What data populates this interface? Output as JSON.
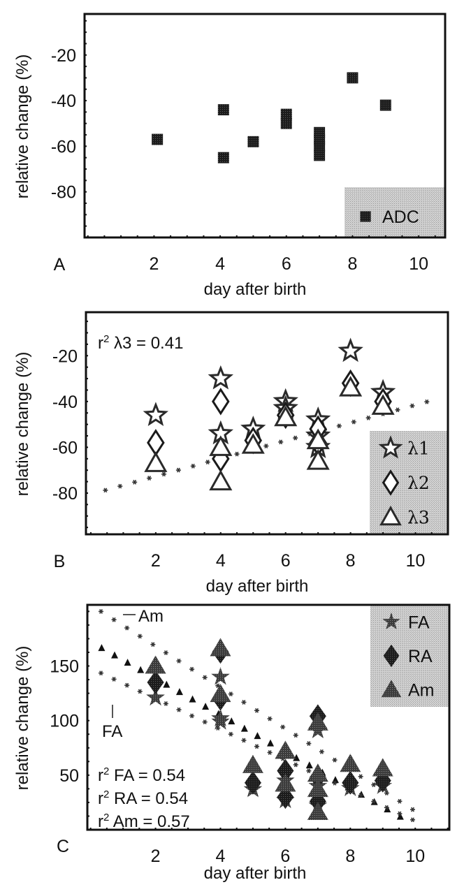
{
  "colors": {
    "ink": "#111111",
    "marker_fill": "#3a3a3a",
    "marker_dark": "#1a1a1a",
    "marker_mid": "#555555",
    "legend_bg": "#cfcfcf",
    "fit_line": "#333333"
  },
  "chart_data": [
    {
      "panel": "A",
      "type": "scatter",
      "xlabel": "day after birth",
      "ylabel": "relative change (%)",
      "xlim": [
        -0.1,
        10.8
      ],
      "ylim": [
        -100,
        -2
      ],
      "xticks": [
        2,
        4,
        6,
        8,
        10
      ],
      "xtick_labels": [
        "2",
        "4",
        "6",
        "8",
        "10"
      ],
      "yticks": [
        -20,
        -40,
        -60,
        -80
      ],
      "ytick_labels": [
        "-20",
        "-40",
        "-60",
        "-80"
      ],
      "legend_position": "bottom-right",
      "series": [
        {
          "name": "ADC",
          "marker": "square",
          "points": [
            [
              2.1,
              -57
            ],
            [
              4.1,
              -44
            ],
            [
              4.1,
              -65
            ],
            [
              5.0,
              -58
            ],
            [
              6.0,
              -46
            ],
            [
              6.0,
              -50
            ],
            [
              7.0,
              -54
            ],
            [
              7.0,
              -57
            ],
            [
              7.0,
              -60
            ],
            [
              7.0,
              -64
            ],
            [
              8.0,
              -30
            ],
            [
              9.0,
              -42
            ]
          ]
        }
      ]
    },
    {
      "panel": "B",
      "type": "scatter",
      "xlabel": "day after birth",
      "ylabel": "relative change (%)",
      "xlim": [
        -0.15,
        11.0
      ],
      "ylim": [
        -98,
        -1
      ],
      "xticks": [
        2,
        4,
        6,
        8,
        10
      ],
      "xtick_labels": [
        "2",
        "4",
        "6",
        "8",
        "10"
      ],
      "yticks": [
        -20,
        -40,
        -60,
        -80
      ],
      "ytick_labels": [
        "-20",
        "-40",
        "-60",
        "-80"
      ],
      "legend_position": "bottom-right",
      "annotation": {
        "prefix": "r",
        "sup": "2",
        "rest": " λ3 = 0.41"
      },
      "series": [
        {
          "name": "λ1",
          "marker": "star-open",
          "points": [
            [
              2.0,
              -46
            ],
            [
              4.0,
              -30
            ],
            [
              4.0,
              -54
            ],
            [
              5.0,
              -52
            ],
            [
              6.0,
              -40
            ],
            [
              6.0,
              -43
            ],
            [
              7.0,
              -48
            ],
            [
              7.0,
              -55
            ],
            [
              7.0,
              -60
            ],
            [
              8.0,
              -18
            ],
            [
              9.0,
              -36
            ]
          ]
        },
        {
          "name": "λ2",
          "marker": "diamond-open",
          "points": [
            [
              2.0,
              -58
            ],
            [
              4.0,
              -40
            ],
            [
              4.0,
              -65
            ],
            [
              5.0,
              -57
            ],
            [
              6.0,
              -46
            ],
            [
              7.0,
              -52
            ],
            [
              7.0,
              -58
            ],
            [
              8.0,
              -32
            ],
            [
              9.0,
              -40
            ]
          ]
        },
        {
          "name": "λ3",
          "marker": "triangle-open",
          "points": [
            [
              2.0,
              -67
            ],
            [
              4.0,
              -75
            ],
            [
              4.0,
              -60
            ],
            [
              5.0,
              -59
            ],
            [
              6.0,
              -47
            ],
            [
              7.0,
              -66
            ],
            [
              7.0,
              -57
            ],
            [
              8.0,
              -34
            ],
            [
              9.0,
              -42
            ]
          ]
        },
        {
          "name": "λ3 fit",
          "marker": "asterisk-dotted",
          "line": {
            "slope": 3.9,
            "intercept": -80.5,
            "x_from": 0.45,
            "x_to": 10.7,
            "step": 0.45
          }
        }
      ]
    },
    {
      "panel": "C",
      "type": "scatter",
      "xlabel": "day after birth",
      "ylabel": "relative change (%)",
      "xlim": [
        -0.1,
        11.05
      ],
      "ylim": [
        0,
        206
      ],
      "xticks": [
        2,
        4,
        6,
        8,
        10
      ],
      "xtick_labels": [
        "2",
        "4",
        "6",
        "8",
        "10"
      ],
      "yticks": [
        50,
        100,
        150
      ],
      "ytick_labels": [
        "50",
        "100",
        "150"
      ],
      "legend_position": "top-right",
      "annotations": [
        {
          "prefix": "r",
          "sup": "2",
          "rest": " FA = 0.54"
        },
        {
          "prefix": "r",
          "sup": "2",
          "rest": " RA = 0.54"
        },
        {
          "prefix": "r",
          "sup": "2",
          "rest": " Am = 0.57"
        }
      ],
      "line_labels": {
        "am": "Am",
        "fa": "FA"
      },
      "series": [
        {
          "name": "FA",
          "marker": "star-filled",
          "points": [
            [
              2.0,
              121
            ],
            [
              4.0,
              140
            ],
            [
              4.0,
              102
            ],
            [
              4.0,
              99
            ],
            [
              5.0,
              37
            ],
            [
              6.0,
              27
            ],
            [
              6.0,
              45
            ],
            [
              7.0,
              91
            ],
            [
              7.0,
              40
            ],
            [
              7.0,
              22
            ],
            [
              8.0,
              38
            ],
            [
              9.0,
              40
            ]
          ]
        },
        {
          "name": "RA",
          "marker": "diamond-filled",
          "points": [
            [
              2.0,
              135
            ],
            [
              4.0,
              163
            ],
            [
              4.0,
              120
            ],
            [
              5.0,
              43
            ],
            [
              6.0,
              54
            ],
            [
              6.0,
              30
            ],
            [
              7.0,
              104
            ],
            [
              7.0,
              48
            ],
            [
              7.0,
              26
            ],
            [
              8.0,
              43
            ],
            [
              9.0,
              45
            ]
          ]
        },
        {
          "name": "Am",
          "marker": "triangle-filled",
          "points": [
            [
              2.0,
              150
            ],
            [
              4.0,
              166
            ],
            [
              4.0,
              124
            ],
            [
              5.0,
              59
            ],
            [
              6.0,
              72
            ],
            [
              6.0,
              42
            ],
            [
              7.0,
              98
            ],
            [
              7.0,
              51
            ],
            [
              7.0,
              37
            ],
            [
              7.0,
              16
            ],
            [
              8.0,
              60
            ],
            [
              9.0,
              56
            ]
          ]
        },
        {
          "name": "Am fit",
          "marker": "asterisk-dotted",
          "line": {
            "slope": -18.9,
            "intercept": 206,
            "x_from": 0.32,
            "x_to": 10.0,
            "step": 0.4
          }
        },
        {
          "name": "RA fit",
          "marker": "triangle-small-dotted",
          "line": {
            "slope": -16.8,
            "intercept": 172,
            "x_from": 0.34,
            "x_to": 9.6,
            "step": 0.4
          }
        },
        {
          "name": "FA fit",
          "marker": "asterisk-dotted",
          "line": {
            "slope": -14.0,
            "intercept": 148,
            "x_from": 0.32,
            "x_to": 10.0,
            "step": 0.4
          }
        }
      ]
    }
  ],
  "panel_labels": [
    "A",
    "B",
    "C"
  ]
}
